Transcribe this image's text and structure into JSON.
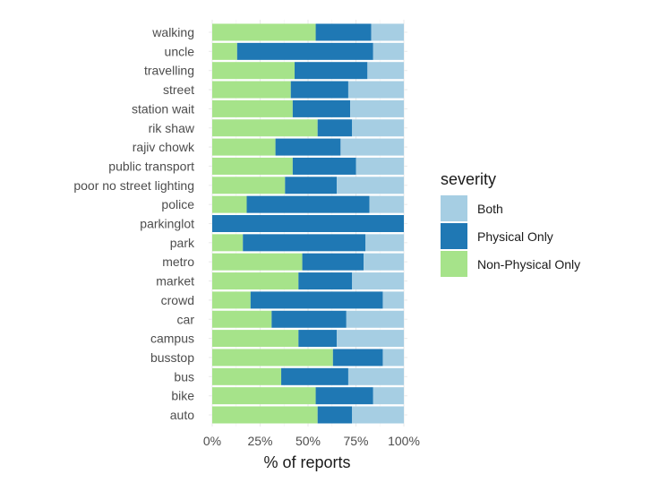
{
  "chart_data": {
    "type": "bar",
    "orientation": "horizontal",
    "stacked": true,
    "normalized": true,
    "xlabel": "% of reports",
    "ylabel": "",
    "xlim": [
      0,
      1
    ],
    "x_ticks": [
      0,
      0.25,
      0.5,
      0.75,
      1
    ],
    "x_tick_labels": [
      "0%",
      "25%",
      "50%",
      "75%",
      "100%"
    ],
    "grid": true,
    "legend": {
      "title": "severity",
      "position": "right"
    },
    "categories": [
      "walking",
      "uncle",
      "travelling",
      "street",
      "station wait",
      "rik shaw",
      "rajiv chowk",
      "public transport",
      "poor no street lighting",
      "police",
      "parkinglot",
      "park",
      "metro",
      "market",
      "crowd",
      "car",
      "campus",
      "busstop",
      "bus",
      "bike",
      "auto"
    ],
    "series": [
      {
        "name": "Non-Physical Only",
        "color": "#a6e38a",
        "values": [
          0.54,
          0.13,
          0.43,
          0.41,
          0.42,
          0.55,
          0.33,
          0.42,
          0.38,
          0.18,
          0.0,
          0.16,
          0.47,
          0.45,
          0.2,
          0.31,
          0.45,
          0.63,
          0.36,
          0.54,
          0.55
        ]
      },
      {
        "name": "Physical Only",
        "color": "#1f78b4",
        "values": [
          0.29,
          0.71,
          0.38,
          0.3,
          0.3,
          0.18,
          0.34,
          0.33,
          0.27,
          0.64,
          1.0,
          0.64,
          0.32,
          0.28,
          0.69,
          0.39,
          0.2,
          0.26,
          0.35,
          0.3,
          0.18
        ]
      },
      {
        "name": "Both",
        "color": "#a6cee3",
        "values": [
          0.17,
          0.16,
          0.19,
          0.29,
          0.28,
          0.27,
          0.33,
          0.25,
          0.35,
          0.18,
          0.0,
          0.2,
          0.21,
          0.27,
          0.11,
          0.3,
          0.35,
          0.11,
          0.29,
          0.16,
          0.27
        ]
      }
    ],
    "legend_order": [
      "Both",
      "Physical Only",
      "Non-Physical Only"
    ]
  }
}
